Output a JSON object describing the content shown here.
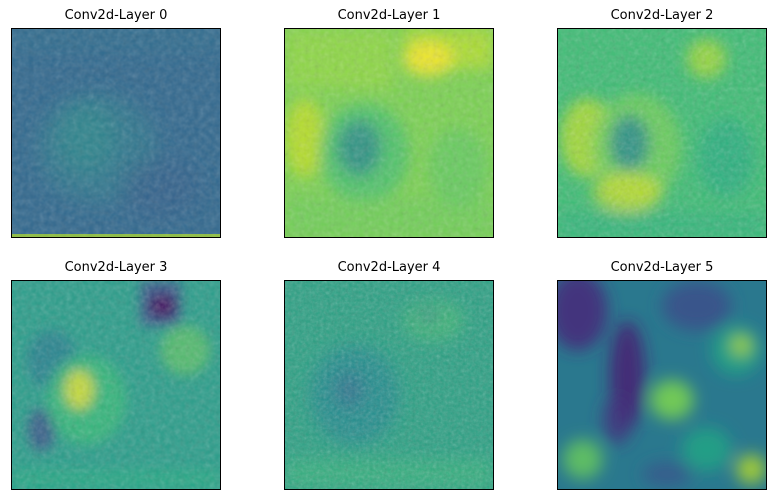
{
  "figure": {
    "panels": [
      {
        "title": "Conv2d-Layer 0",
        "colormap": "viridis",
        "palette": {
          "base": "#31688e",
          "light": "#2b8b8c",
          "mid": "#3b7a8c",
          "dark": "#2e5f8a",
          "accent": "#35b779"
        }
      },
      {
        "title": "Conv2d-Layer 1",
        "colormap": "viridis",
        "palette": {
          "base": "#7ad151",
          "light": "#c2df23",
          "mid": "#4ac16d",
          "dark": "#26828e",
          "accent": "#fde725"
        }
      },
      {
        "title": "Conv2d-Layer 2",
        "colormap": "viridis",
        "palette": {
          "base": "#3dbc74",
          "light": "#a8db34",
          "mid": "#25ab82",
          "dark": "#1f848d",
          "accent": "#e5e419"
        }
      },
      {
        "title": "Conv2d-Layer 3",
        "colormap": "viridis",
        "palette": {
          "base": "#2a9d8a",
          "light": "#6ccd5a",
          "mid": "#287d8e",
          "dark": "#3b528b",
          "accent": "#fde725"
        }
      },
      {
        "title": "Conv2d-Layer 4",
        "colormap": "viridis",
        "palette": {
          "base": "#2aa083",
          "light": "#47c06f",
          "mid": "#23898e",
          "dark": "#2c718e",
          "accent": "#b8de29"
        }
      },
      {
        "title": "Conv2d-Layer 5",
        "colormap": "viridis",
        "palette": {
          "base": "#2a788e",
          "light": "#79d151",
          "mid": "#22a884",
          "dark": "#472d7b",
          "accent": "#bddf26"
        }
      }
    ]
  }
}
